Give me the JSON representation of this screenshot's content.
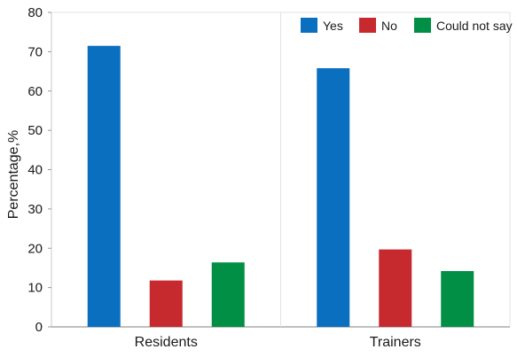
{
  "chart_data": {
    "type": "bar",
    "title": "",
    "xlabel": "",
    "ylabel": "Percentage,%",
    "ylim": [
      0,
      80
    ],
    "yticks": [
      0,
      10,
      20,
      30,
      40,
      50,
      60,
      70,
      80
    ],
    "categories": [
      "Residents",
      "Trainers"
    ],
    "series": [
      {
        "name": "Yes",
        "color": "#0b6fc0",
        "values": [
          71.5,
          65.8
        ]
      },
      {
        "name": "No",
        "color": "#c62a2f",
        "values": [
          11.8,
          19.7
        ]
      },
      {
        "name": "Could not say",
        "color": "#008f45",
        "values": [
          16.4,
          14.2
        ]
      }
    ],
    "grid": "vertical divider between categories",
    "legend": "top-right"
  }
}
